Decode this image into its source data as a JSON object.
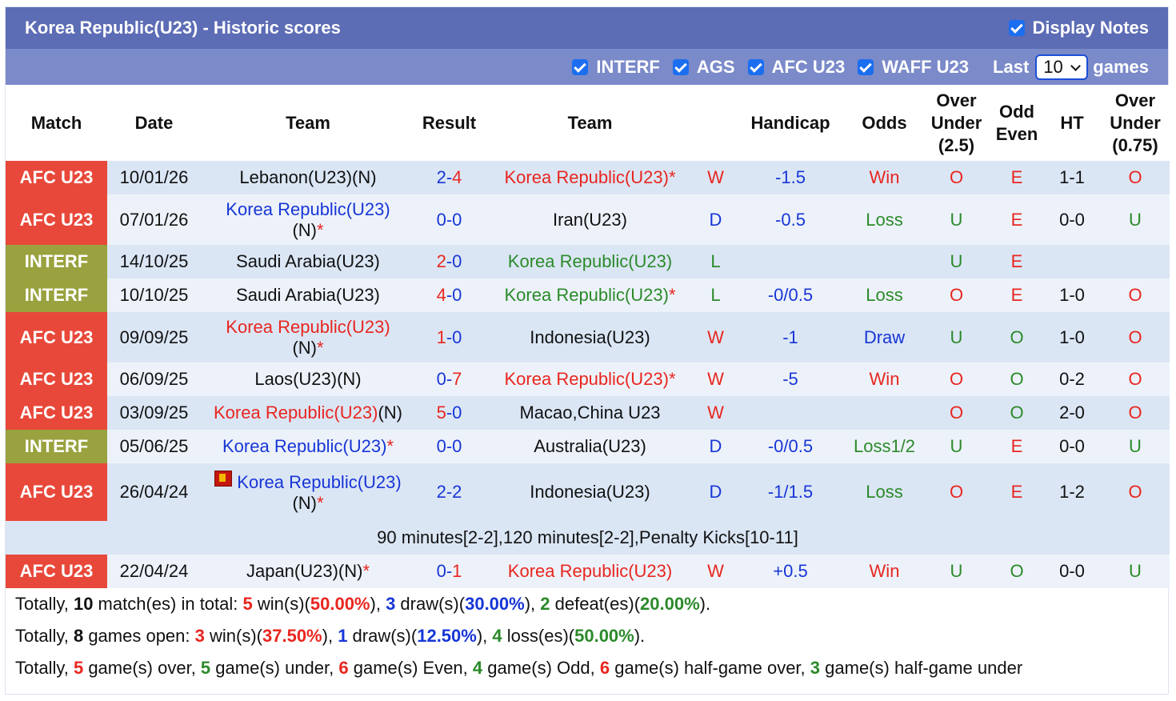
{
  "header": {
    "title": "Korea Republic(U23) - Historic scores",
    "display_notes": "Display Notes"
  },
  "filters": {
    "items": [
      "INTERF",
      "AGS",
      "AFC U23",
      "WAFF U23"
    ],
    "last_label": "Last",
    "last_value": "10",
    "games_label": "games"
  },
  "columns": [
    "Match",
    "Date",
    "Team",
    "Result",
    "Team",
    "",
    "Handicap",
    "Odds",
    "Over Under (2.5)",
    "Odd Even",
    "HT",
    "Over Under (0.75)"
  ],
  "match_colors": {
    "AFC U23": "#e8483a",
    "INTERF": "#99a23e"
  },
  "palette": {
    "red": "#e8261f",
    "blue": "#1736d6",
    "green": "#2b8a2a",
    "black": "#111111"
  },
  "styles": {
    "outcome": {
      "W": "red",
      "D": "blue",
      "L": "green"
    },
    "odds": {
      "Win": "red",
      "Loss": "green",
      "Draw": "blue",
      "Loss1/2": "green"
    },
    "ou": {
      "O": "red",
      "U": "green"
    },
    "oe": {
      "E": "red",
      "O": "green"
    }
  },
  "table": {
    "rows": [
      {
        "match": "AFC U23",
        "date": "10/01/26",
        "home": [
          {
            "t": "Lebanon(U23)(N)",
            "c": "black"
          }
        ],
        "result": [
          "2",
          "-",
          "4"
        ],
        "winner": 2,
        "away": [
          {
            "t": "Korea Republic(U23)",
            "c": "red"
          },
          {
            "t": "*",
            "c": "red"
          }
        ],
        "outcome": "W",
        "handicap": "-1.5",
        "odds": "Win",
        "ou": "O",
        "oe": "E",
        "ht": "1-1",
        "ou2": "O"
      },
      {
        "match": "AFC U23",
        "date": "07/01/26",
        "home": [
          {
            "t": "Korea Republic(U23)",
            "c": "blue"
          },
          {
            "t": "(N)",
            "c": "black",
            "br": true
          },
          {
            "t": "*",
            "c": "red"
          }
        ],
        "result": [
          "0",
          "-",
          "0"
        ],
        "winner": null,
        "away": [
          {
            "t": "Iran(U23)",
            "c": "black"
          }
        ],
        "outcome": "D",
        "handicap": "-0.5",
        "odds": "Loss",
        "ou": "U",
        "oe": "E",
        "ht": "0-0",
        "ou2": "U"
      },
      {
        "match": "INTERF",
        "date": "14/10/25",
        "home": [
          {
            "t": "Saudi Arabia(U23)",
            "c": "black"
          }
        ],
        "result": [
          "2",
          "-",
          "0"
        ],
        "winner": 0,
        "away": [
          {
            "t": "Korea Republic(U23)",
            "c": "green"
          }
        ],
        "outcome": "L",
        "handicap": null,
        "odds": null,
        "ou": "U",
        "oe": "E",
        "ht": null,
        "ou2": null
      },
      {
        "match": "INTERF",
        "date": "10/10/25",
        "home": [
          {
            "t": "Saudi Arabia(U23)",
            "c": "black"
          }
        ],
        "result": [
          "4",
          "-",
          "0"
        ],
        "winner": 0,
        "away": [
          {
            "t": "Korea Republic(U23)",
            "c": "green"
          },
          {
            "t": "*",
            "c": "red"
          }
        ],
        "outcome": "L",
        "handicap": "-0/0.5",
        "odds": "Loss",
        "ou": "O",
        "oe": "E",
        "ht": "1-0",
        "ou2": "O"
      },
      {
        "match": "AFC U23",
        "date": "09/09/25",
        "home": [
          {
            "t": "Korea Republic(U23)",
            "c": "red"
          },
          {
            "t": "(N)",
            "c": "black",
            "br": true
          },
          {
            "t": "*",
            "c": "red"
          }
        ],
        "result": [
          "1",
          "-",
          "0"
        ],
        "winner": 0,
        "away": [
          {
            "t": "Indonesia(U23)",
            "c": "black"
          }
        ],
        "outcome": "W",
        "handicap": "-1",
        "odds": "Draw",
        "ou": "U",
        "oe": "O",
        "ht": "1-0",
        "ou2": "O"
      },
      {
        "match": "AFC U23",
        "date": "06/09/25",
        "home": [
          {
            "t": "Laos(U23)(N)",
            "c": "black"
          }
        ],
        "result": [
          "0",
          "-",
          "7"
        ],
        "winner": 2,
        "away": [
          {
            "t": "Korea Republic(U23)",
            "c": "red"
          },
          {
            "t": "*",
            "c": "red"
          }
        ],
        "outcome": "W",
        "handicap": "-5",
        "odds": "Win",
        "ou": "O",
        "oe": "O",
        "ht": "0-2",
        "ou2": "O"
      },
      {
        "match": "AFC U23",
        "date": "03/09/25",
        "home": [
          {
            "t": "Korea Republic(U23)",
            "c": "red"
          },
          {
            "t": "(N)",
            "c": "black"
          }
        ],
        "result": [
          "5",
          "-",
          "0"
        ],
        "winner": 0,
        "away": [
          {
            "t": "Macao,China U23",
            "c": "black"
          }
        ],
        "outcome": "W",
        "handicap": null,
        "odds": null,
        "ou": "O",
        "oe": "O",
        "ht": "2-0",
        "ou2": "O"
      },
      {
        "match": "INTERF",
        "date": "05/06/25",
        "home": [
          {
            "t": "Korea Republic(U23)",
            "c": "blue"
          },
          {
            "t": "*",
            "c": "red"
          }
        ],
        "result": [
          "0",
          "-",
          "0"
        ],
        "winner": null,
        "away": [
          {
            "t": "Australia(U23)",
            "c": "black"
          }
        ],
        "outcome": "D",
        "handicap": "-0/0.5",
        "odds": "Loss1/2",
        "ou": "U",
        "oe": "E",
        "ht": "0-0",
        "ou2": "U"
      },
      {
        "match": "AFC U23",
        "date": "26/04/24",
        "icon": true,
        "home": [
          {
            "t": "Korea Republic(U23)",
            "c": "blue"
          },
          {
            "t": "(N)",
            "c": "black",
            "br": true
          },
          {
            "t": "*",
            "c": "red"
          }
        ],
        "result": [
          "2",
          "-",
          "2"
        ],
        "winner": null,
        "away": [
          {
            "t": "Indonesia(U23)",
            "c": "black"
          }
        ],
        "outcome": "D",
        "handicap": "-1/1.5",
        "odds": "Loss",
        "ou": "O",
        "oe": "E",
        "ht": "1-2",
        "ou2": "O",
        "note": "90 minutes[2-2],120 minutes[2-2],Penalty Kicks[10-11]"
      },
      {
        "match": "AFC U23",
        "date": "22/04/24",
        "home": [
          {
            "t": "Japan(U23)(N)",
            "c": "black"
          },
          {
            "t": "*",
            "c": "red"
          }
        ],
        "result": [
          "0",
          "-",
          "1"
        ],
        "winner": 2,
        "away": [
          {
            "t": "Korea Republic(U23)",
            "c": "red"
          }
        ],
        "outcome": "W",
        "handicap": "+0.5",
        "odds": "Win",
        "ou": "U",
        "oe": "O",
        "ht": "0-0",
        "ou2": "U"
      }
    ]
  },
  "summary": [
    [
      {
        "t": "Totally, "
      },
      {
        "t": "10",
        "c": "black"
      },
      {
        "t": " match(es) in total: "
      },
      {
        "t": "5",
        "c": "red"
      },
      {
        "t": " win(s)("
      },
      {
        "t": "50.00%",
        "c": "red"
      },
      {
        "t": "), "
      },
      {
        "t": "3",
        "c": "blue"
      },
      {
        "t": " draw(s)("
      },
      {
        "t": "30.00%",
        "c": "blue"
      },
      {
        "t": "), "
      },
      {
        "t": "2",
        "c": "green"
      },
      {
        "t": " defeat(es)("
      },
      {
        "t": "20.00%",
        "c": "green"
      },
      {
        "t": ")."
      }
    ],
    [
      {
        "t": "Totally, "
      },
      {
        "t": "8",
        "c": "black"
      },
      {
        "t": " games open: "
      },
      {
        "t": "3",
        "c": "red"
      },
      {
        "t": " win(s)("
      },
      {
        "t": "37.50%",
        "c": "red"
      },
      {
        "t": "), "
      },
      {
        "t": "1",
        "c": "blue"
      },
      {
        "t": " draw(s)("
      },
      {
        "t": "12.50%",
        "c": "blue"
      },
      {
        "t": "), "
      },
      {
        "t": "4",
        "c": "green"
      },
      {
        "t": " loss(es)("
      },
      {
        "t": "50.00%",
        "c": "green"
      },
      {
        "t": ")."
      }
    ],
    [
      {
        "t": "Totally, "
      },
      {
        "t": "5",
        "c": "red"
      },
      {
        "t": " game(s) over, "
      },
      {
        "t": "5",
        "c": "green"
      },
      {
        "t": " game(s) under, "
      },
      {
        "t": "6",
        "c": "red"
      },
      {
        "t": " game(s) Even, "
      },
      {
        "t": "4",
        "c": "green"
      },
      {
        "t": " game(s) Odd, "
      },
      {
        "t": "6",
        "c": "red"
      },
      {
        "t": " game(s) half-game over, "
      },
      {
        "t": "3",
        "c": "green"
      },
      {
        "t": " game(s) half-game under"
      }
    ]
  ]
}
